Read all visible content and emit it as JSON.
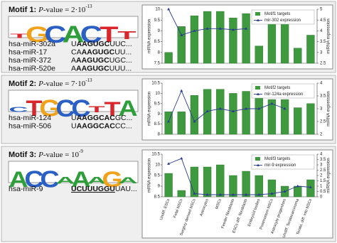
{
  "panels": [
    {
      "motif": "Motif 1:",
      "p": "P",
      "pvalue": "-value = 2·10",
      "exp": "-13",
      "logo": {
        "letters": [
          "T",
          "G",
          "C",
          "A",
          "C",
          "T",
          "T"
        ],
        "heights": [
          0.5,
          1.8,
          2,
          1.9,
          2,
          1.8,
          0.9
        ]
      },
      "mirnas": [
        {
          "name": "hsa-miR-302a",
          "seq": [
            {
              "t": "U"
            },
            {
              "t": "AAGUGC",
              "b": true
            },
            {
              "t": "UUC..."
            }
          ]
        },
        {
          "name": "hsa-miR-17",
          "seq": [
            {
              "t": "CA"
            },
            {
              "t": "AAGUGC",
              "b": true
            },
            {
              "t": "UU..."
            }
          ]
        },
        {
          "name": "hsa-miR-372",
          "seq": [
            {
              "t": "A"
            },
            {
              "t": "AAGUGC",
              "b": true
            },
            {
              "t": "UGC..."
            }
          ]
        },
        {
          "name": "hsa-miR-520e",
          "seq": [
            {
              "t": "A"
            },
            {
              "t": "AAGUGC",
              "b": true
            },
            {
              "t": "UUU..."
            }
          ]
        }
      ]
    },
    {
      "motif": "Motif 2:",
      "p": "P",
      "pvalue": "-value = 7·10",
      "exp": "-13",
      "logo": {
        "letters": [
          "C",
          "T",
          "G",
          "C",
          "C",
          "T",
          "T",
          "A"
        ],
        "heights": [
          0.6,
          1.8,
          1.9,
          2,
          2,
          0.7,
          1.6,
          1.8
        ]
      },
      "mirnas": [
        {
          "name": "hsa-miR-124",
          "seq": [
            {
              "t": "U"
            },
            {
              "t": "AAGGCAC",
              "b": true
            },
            {
              "t": "GC..."
            }
          ]
        },
        {
          "name": "hsa-miR-506",
          "seq": [
            {
              "t": "U"
            },
            {
              "t": "AAGGCAC",
              "b": true
            },
            {
              "t": "CC..."
            }
          ]
        }
      ]
    },
    {
      "motif": "Motif 3:",
      "p": "P",
      "pvalue": "-value = 10",
      "exp": "-9",
      "logo": {
        "letters": [
          "A",
          "C",
          "C",
          "A",
          "A",
          "A",
          "G",
          "A"
        ],
        "heights": [
          1.8,
          1.9,
          1.9,
          0.8,
          1.8,
          0.8,
          1.8,
          0.7
        ]
      },
      "mirnas": [
        {
          "name": "hsa-miR-9",
          "seq": [
            {
              "t": "UCUUUGGU",
              "b": true,
              "u": true
            },
            {
              "t": "UAU..."
            }
          ]
        }
      ]
    }
  ],
  "chart_data": [
    {
      "type": "bar",
      "ylabel": "mRNA expression",
      "y2label": "miRNA expression",
      "categories": [
        null,
        null,
        null,
        null,
        null,
        null,
        null,
        null,
        null,
        null,
        null,
        null
      ],
      "series": [
        {
          "name": "Motif1 targets",
          "color": "#3f9a3f",
          "values": [
            8.0,
            9.2,
            9.7,
            9.9,
            9.9,
            9.6,
            9.8,
            8.3,
            9.8,
            9.4,
            8.2,
            8.8
          ]
        },
        {
          "name": "mir-302 expression",
          "color": "#2b3a8f",
          "axis": "y2",
          "values": [
            5.0,
            3.8,
            4.0,
            4.1,
            4.1,
            4.05,
            4.1,
            null,
            null,
            null,
            null,
            null
          ]
        }
      ],
      "ylim": [
        7.5,
        10
      ],
      "yticks": [
        7.5,
        8,
        8.5,
        9,
        9.5,
        10
      ],
      "y2lim": [
        2.5,
        5
      ],
      "y2ticks": [
        2.5,
        3,
        3.5,
        4,
        4.5,
        5
      ],
      "grid": false
    },
    {
      "type": "bar",
      "ylabel": "mRNA expression",
      "y2label": "miRNA expression",
      "categories": [
        null,
        null,
        null,
        null,
        null,
        null,
        null,
        null,
        null,
        null,
        null,
        null
      ],
      "series": [
        {
          "name": "Motif2 targets",
          "color": "#3f9a3f",
          "values": [
            9.1,
            9.1,
            9.9,
            10.2,
            10.2,
            10.0,
            10.1,
            10.2,
            9.7,
            9.7,
            9.3,
            9.5
          ]
        },
        {
          "name": "mir-124a expression",
          "color": "#2b3a8f",
          "axis": "y2",
          "values": [
            2.5,
            3.7,
            2.5,
            2.9,
            3.0,
            2.9,
            3.0,
            3.0,
            3.2,
            3.0,
            null,
            null
          ]
        }
      ],
      "ylim": [
        8,
        10.5
      ],
      "yticks": [
        8,
        8.5,
        9,
        9.5,
        10,
        10.5
      ],
      "y2lim": [
        2,
        4
      ],
      "y2ticks": [
        2,
        2.5,
        3,
        3.5,
        4
      ],
      "grid": false
    },
    {
      "type": "bar",
      "ylabel": "mRNA expression",
      "y2label": "miRNA expression",
      "categories": [
        "Undiff. ESCs",
        "Fetal NSCs",
        "Surgery derived NSCs",
        "Astrocytes",
        "MSCs",
        "Feeder fibroblasts",
        "ESCs diff. fibroblasts",
        "Embryoid bodies",
        "Postmortem NSCs",
        "Astrocyte progenitors",
        "Undiff. Teratocarcinoma",
        "Terato. diff. into NSCs"
      ],
      "series": [
        {
          "name": "Motif3 targets",
          "color": "#3f9a3f",
          "values": [
            9.6,
            8.8,
            9.9,
            9.9,
            10.0,
            9.5,
            9.7,
            9.5,
            9.3,
            9.0,
            9.0,
            9.3
          ]
        },
        {
          "name": "mir-9 expression",
          "color": "#2b3a8f",
          "axis": "y2",
          "values": [
            3.1,
            3.6,
            0.3,
            0.2,
            0.2,
            0.2,
            0.2,
            0.2,
            0.3,
            0.5,
            1.0,
            0.9
          ]
        }
      ],
      "ylim": [
        8.5,
        10.5
      ],
      "yticks": [
        8.5,
        9,
        9.5,
        10,
        10.5
      ],
      "y2lim": [
        0,
        4
      ],
      "y2ticks": [
        0,
        0.5,
        1,
        1.5,
        2,
        2.5,
        3,
        3.5,
        4
      ],
      "grid": false
    }
  ]
}
